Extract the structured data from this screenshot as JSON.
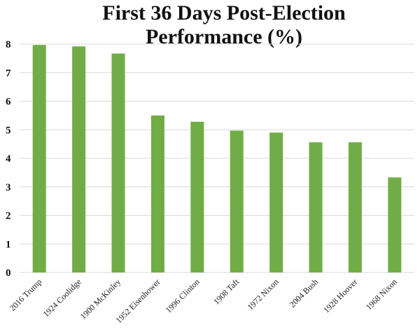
{
  "chart_data": {
    "type": "bar",
    "title_lines": [
      "First 36 Days Post-Election",
      "Performance (%)"
    ],
    "categories": [
      "2016 Trump",
      "1924 Coolidge",
      "1900 McKinley",
      "1952 Eisenhower",
      "1996 Clinton",
      "1908 Taft",
      "1972 Nixon",
      "2004 Bush",
      "1928 Hoover",
      "1968 Nixon"
    ],
    "values": [
      7.97,
      7.92,
      7.67,
      5.5,
      5.28,
      4.97,
      4.9,
      4.56,
      4.56,
      3.33
    ],
    "ylim": [
      0,
      8
    ],
    "yticks": [
      0,
      1,
      2,
      3,
      4,
      5,
      6,
      7,
      8
    ],
    "grid": true,
    "legend": "none",
    "bar_color": "#70ad47",
    "grid_color": "#d9d9d9"
  }
}
